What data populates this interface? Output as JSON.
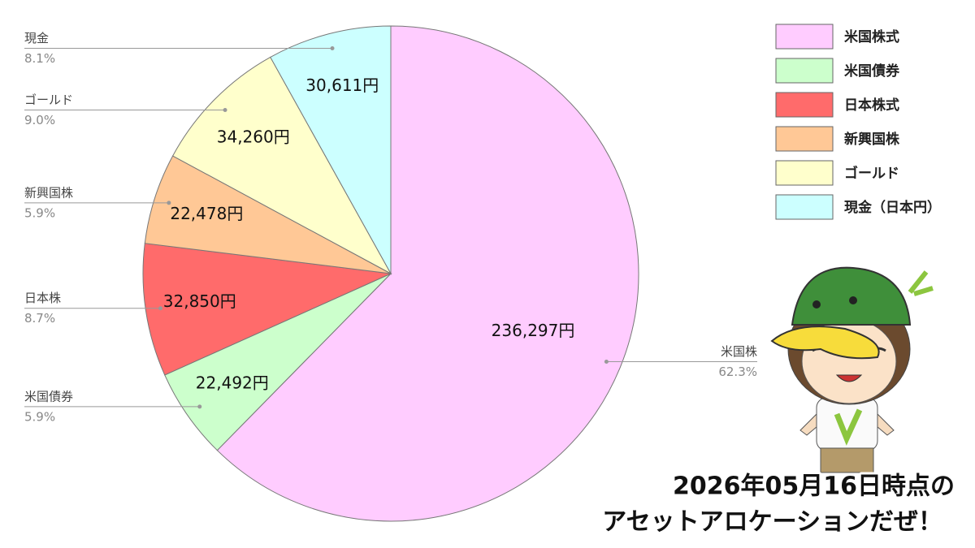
{
  "chart_data": {
    "type": "pie",
    "categories": [
      "米国株",
      "米国債券",
      "日本株",
      "新興国株",
      "ゴールド",
      "現金"
    ],
    "values": [
      236297,
      22492,
      32850,
      22478,
      34260,
      30611
    ],
    "value_labels": [
      "236,297円",
      "22,492円",
      "32,850円",
      "22,478円",
      "34,260円",
      "30,611円"
    ],
    "percents": [
      62.3,
      5.9,
      8.7,
      5.9,
      9.0,
      8.1
    ],
    "percent_labels": [
      "62.3%",
      "5.9%",
      "8.7%",
      "5.9%",
      "9.0%",
      "8.1%"
    ],
    "colors": [
      "#ffccff",
      "#ccffcc",
      "#ff6b6b",
      "#ffc896",
      "#ffffcc",
      "#ccffff"
    ],
    "legend": [
      "米国株式",
      "米国債券",
      "日本株式",
      "新興国株",
      "ゴールド",
      "現金（日本円）"
    ],
    "legend_position": "upper right"
  },
  "caption": [
    "2026年05月16日時点の",
    "アセットアロケーションだぜ！"
  ]
}
